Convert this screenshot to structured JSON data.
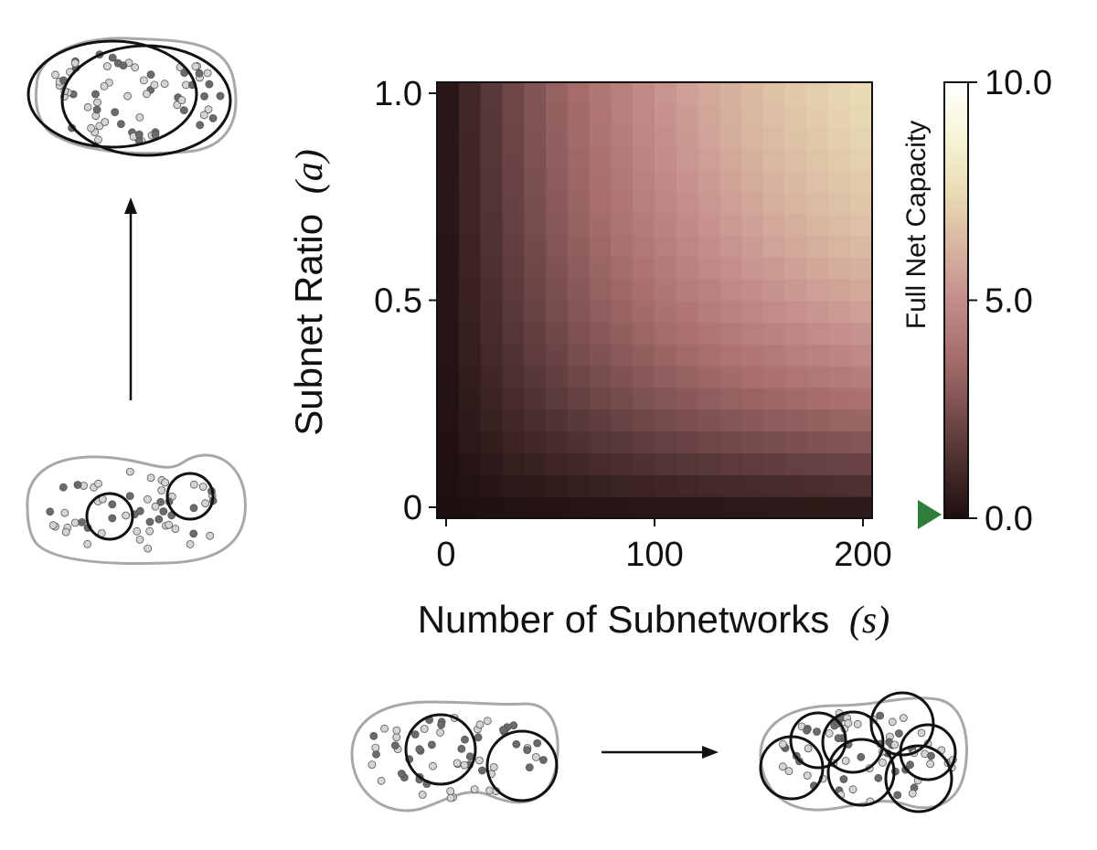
{
  "chart_data": {
    "type": "heatmap",
    "title": "",
    "xlabel": "Number of Subnetworks",
    "xlabel_symbol": "(s)",
    "ylabel": "Subnet Ratio",
    "ylabel_symbol": "(a)",
    "x_ticks": [
      "0",
      "100",
      "200"
    ],
    "y_ticks": [
      "0",
      "0.5",
      "1.0"
    ],
    "xlim": [
      0,
      200
    ],
    "ylim": [
      0,
      1.0
    ],
    "grid": false,
    "colorbar": {
      "label": "Full Net Capacity",
      "range": [
        0.0,
        10.0
      ],
      "ticks": [
        "0.0",
        "5.0",
        "10.0"
      ],
      "marker_value": 0.0,
      "marker_color": "#2e7d3a"
    },
    "colormap": [
      "#1e0e0e",
      "#4a2e2e",
      "#7a4f4f",
      "#a86e6e",
      "#c48c8c",
      "#d8b6a0",
      "#e9dcb4",
      "#f6f4d6",
      "#ffffff"
    ],
    "grid_size": {
      "cols": 20,
      "rows": 20
    },
    "value_model": "capacity(s, a) ≈ 10 · (1 − exp(−s/140)) · (1 − exp(−2.3·a)) / 0.9, estimated from cell colours"
  },
  "diagrams": {
    "left_top": "many large overlapping subnetworks",
    "left_bottom": "few small subnetworks",
    "bottom_left": "few large subnetworks",
    "bottom_right": "many overlapping subnetworks"
  }
}
